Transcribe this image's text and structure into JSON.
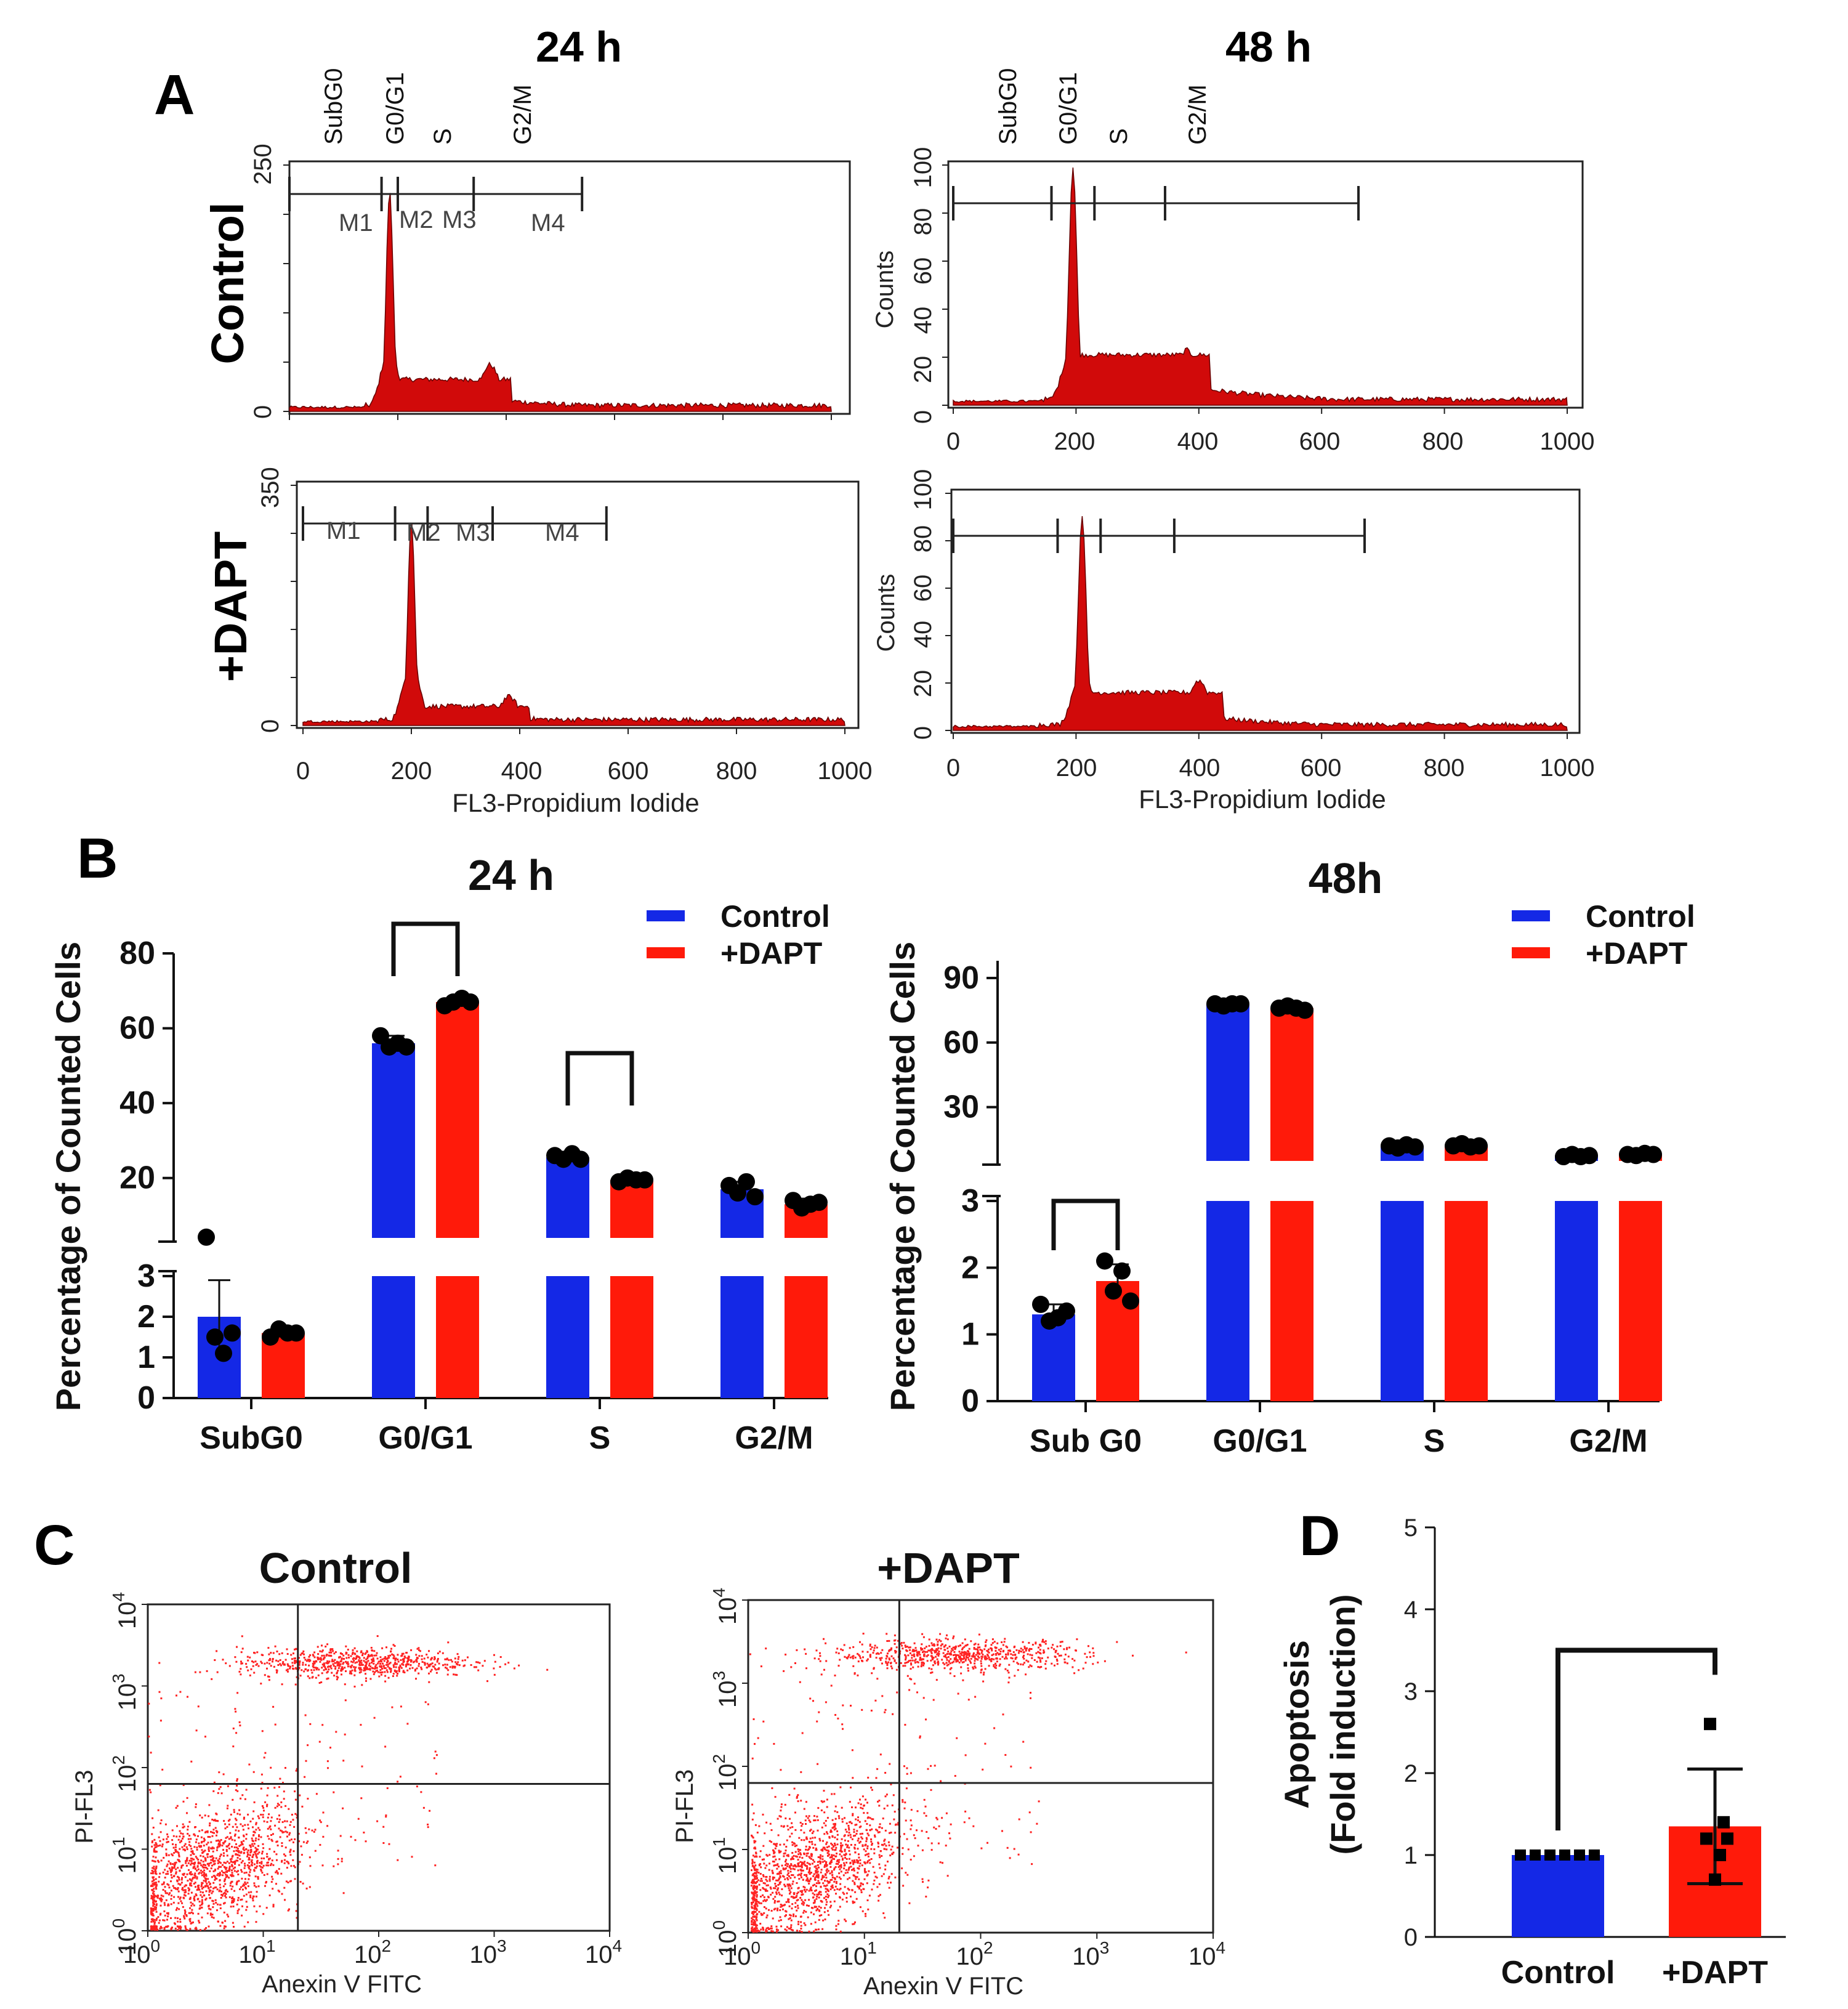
{
  "colors": {
    "control": "#1428e6",
    "dapt": "#ff1a0a",
    "hist": "#d10a0a",
    "scatter": "#ff2222",
    "dot": "#000000"
  },
  "panel_a": {
    "letter": "A",
    "title_24": "24 h",
    "title_48": "48 h",
    "row_control": "Control",
    "row_dapt": "+DAPT",
    "phase_labels_24": [
      "SubG0",
      "G0/G1",
      "S",
      "G2/M"
    ],
    "phase_labels_48": [
      "SubG0",
      "G0/G1",
      "S",
      "G2/M"
    ],
    "marker_labels": [
      "M1",
      "M2",
      "M3",
      "M4"
    ],
    "x_ticks": [
      "0",
      "200",
      "400",
      "600",
      "800",
      "1000"
    ],
    "y_ticks_counts": [
      "0",
      "20",
      "40",
      "60",
      "80",
      "100"
    ],
    "ymax_24_control": "250",
    "ymax_24_dapt": "350",
    "ymin": "0",
    "ylabel_counts": "Counts",
    "xlabel": "FL3-Propidium Iodide"
  },
  "panel_b": {
    "letter": "B",
    "ylabel": "Percentage of Counted Cells",
    "legend": [
      "Control",
      "+DAPT"
    ],
    "title_24": "24 h",
    "title_48": "48h",
    "cats_24": [
      "SubG0",
      "G0/G1",
      "S",
      "G2/M"
    ],
    "cats_48": [
      "Sub G0",
      "G0/G1",
      "S",
      "G2/M"
    ],
    "upper_ticks_24": [
      "20",
      "40",
      "60",
      "80"
    ],
    "lower_ticks_24": [
      "0",
      "1",
      "2",
      "3"
    ],
    "upper_ticks_48": [
      "30",
      "60",
      "90"
    ],
    "lower_ticks_48": [
      "0",
      "1",
      "2",
      "3"
    ]
  },
  "panel_c": {
    "letter": "C",
    "title_control": "Control",
    "title_dapt": "+DAPT",
    "xlabel": "Anexin V FITC",
    "ylabel": "PI-FL3",
    "log_base": "10",
    "log_exponents": [
      "0",
      "1",
      "2",
      "3",
      "4"
    ]
  },
  "panel_d": {
    "letter": "D",
    "ylabel_line1": "Apoptosis",
    "ylabel_line2": "(Fold induction)",
    "y_ticks": [
      "0",
      "1",
      "2",
      "3",
      "4",
      "5"
    ],
    "categories": [
      "Control",
      "+DAPT"
    ]
  },
  "chart_data": [
    {
      "id": "b_24h",
      "type": "bar",
      "title": "24 h",
      "ylabel": "Percentage of Counted Cells",
      "categories": [
        "SubG0",
        "G0/G1",
        "S",
        "G2/M"
      ],
      "y_axis_break": {
        "lower_range": [
          0,
          3
        ],
        "upper_range": [
          3,
          80
        ]
      },
      "series": [
        {
          "name": "Control",
          "values": [
            2.0,
            56.0,
            25.5,
            17.0
          ],
          "errors": [
            0.9,
            2.0,
            1.0,
            2.0
          ],
          "points": [
            [
              4.2,
              1.5,
              1.1,
              1.6
            ],
            [
              58,
              55,
              56,
              55
            ],
            [
              26,
              25,
              26.5,
              25
            ],
            [
              18,
              16,
              19,
              15
            ]
          ]
        },
        {
          "name": "+DAPT",
          "values": [
            1.6,
            67.0,
            19.5,
            13.0
          ],
          "errors": [
            0.1,
            1.0,
            0.8,
            1.5
          ],
          "points": [
            [
              1.5,
              1.7,
              1.6,
              1.6
            ],
            [
              66,
              67,
              68,
              67
            ],
            [
              19,
              20,
              19.5,
              19.5
            ],
            [
              14,
              12,
              13,
              13.5
            ]
          ]
        }
      ],
      "significance_brackets": [
        [
          "G0/G1"
        ],
        [
          "S"
        ]
      ]
    },
    {
      "id": "b_48h",
      "type": "bar",
      "title": "48h",
      "ylabel": "Percentage of Counted Cells",
      "categories": [
        "Sub G0",
        "G0/G1",
        "S",
        "G2/M"
      ],
      "y_axis_break": {
        "lower_range": [
          0,
          3
        ],
        "upper_range": [
          3,
          90
        ]
      },
      "series": [
        {
          "name": "Control",
          "values": [
            1.3,
            78.0,
            12.0,
            7.5
          ],
          "errors": [
            0.15,
            1.0,
            1.0,
            0.8
          ],
          "points": [
            [
              1.45,
              1.2,
              1.25,
              1.35
            ],
            [
              78,
              77,
              78,
              78
            ],
            [
              12,
              11,
              12.5,
              11.5
            ],
            [
              7,
              8,
              7,
              7.5
            ]
          ]
        },
        {
          "name": "+DAPT",
          "values": [
            1.8,
            76.0,
            12.0,
            8.0
          ],
          "errors": [
            0.25,
            1.0,
            1.0,
            0.8
          ],
          "points": [
            [
              2.1,
              1.65,
              1.95,
              1.5
            ],
            [
              76,
              77,
              76,
              75
            ],
            [
              12,
              13,
              11.5,
              12
            ],
            [
              8,
              7.5,
              8.5,
              8
            ]
          ]
        }
      ],
      "significance_brackets": [
        [
          "Sub G0"
        ]
      ]
    },
    {
      "id": "d_apoptosis",
      "type": "bar",
      "ylabel": "Apoptosis (Fold induction)",
      "categories": [
        "Control",
        "+DAPT"
      ],
      "values": [
        1.0,
        1.35
      ],
      "errors": [
        0.0,
        0.7
      ],
      "points": [
        [
          1,
          1,
          1,
          1,
          1,
          1
        ],
        [
          2.6,
          1.4,
          1.2,
          1.0,
          0.7,
          1.2
        ]
      ],
      "ylim": [
        0,
        5
      ],
      "significance_brackets": [
        [
          "Control",
          "+DAPT"
        ]
      ]
    },
    {
      "id": "a_histograms",
      "type": "area",
      "xlabel": "FL3-Propidium Iodide",
      "x_range": [
        0,
        1000
      ],
      "panels": [
        {
          "name": "24 h Control",
          "ymax": 250,
          "g1_peak": 185,
          "g2_peak": 370,
          "peak_height": 0.88,
          "s_level": 0.12,
          "g2_height": 0.18,
          "markers": [
            0,
            170,
            200,
            340,
            540
          ]
        },
        {
          "name": "48 h Control",
          "ymax": 100,
          "g1_peak": 195,
          "g2_peak": 380,
          "peak_height": 0.98,
          "s_level": 0.2,
          "g2_height": 0.22,
          "markers": [
            0,
            160,
            230,
            345,
            660
          ]
        },
        {
          "name": "24 h +DAPT",
          "ymax": 350,
          "g1_peak": 200,
          "g2_peak": 380,
          "peak_height": 0.85,
          "s_level": 0.07,
          "g2_height": 0.11,
          "markers": [
            0,
            170,
            230,
            350,
            560
          ]
        },
        {
          "name": "48 h +DAPT",
          "ymax": 100,
          "g1_peak": 210,
          "g2_peak": 400,
          "peak_height": 0.9,
          "s_level": 0.15,
          "g2_height": 0.2,
          "markers": [
            0,
            170,
            240,
            360,
            670
          ]
        }
      ]
    },
    {
      "id": "c_scatter",
      "type": "scatter",
      "xlabel": "Anexin V FITC",
      "ylabel": "PI-FL3",
      "x_scale": "log10",
      "y_scale": "log10",
      "x_range": [
        0,
        4
      ],
      "y_range": [
        0,
        4
      ],
      "quadrant_x": 1.3,
      "quadrant_y": 1.8,
      "populations": [
        {
          "panel": "Control",
          "cluster": "live",
          "center": [
            0.5,
            0.7
          ],
          "spread": [
            0.42,
            0.38
          ]
        },
        {
          "panel": "Control",
          "cluster": "late",
          "center": [
            1.8,
            3.3
          ],
          "spread": [
            0.5,
            0.09
          ]
        },
        {
          "panel": "+DAPT",
          "cluster": "live",
          "center": [
            0.55,
            0.75
          ],
          "spread": [
            0.42,
            0.35
          ]
        },
        {
          "panel": "+DAPT",
          "cluster": "late",
          "center": [
            1.8,
            3.35
          ],
          "spread": [
            0.55,
            0.09
          ]
        }
      ]
    }
  ]
}
